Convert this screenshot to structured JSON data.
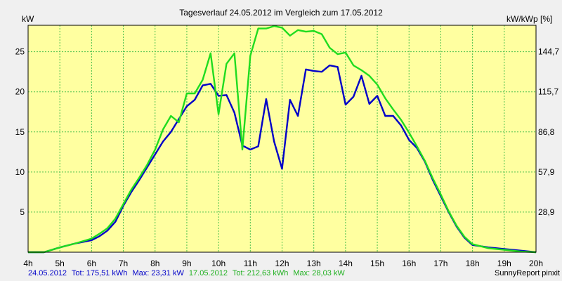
{
  "chart_data": {
    "type": "line",
    "title": "Tagesverlauf 24.05.2012 im Vergleich zum 17.05.2012",
    "ylabel_left": "kW",
    "ylabel_right": "kW/kWp [%]",
    "xlim": [
      4,
      20
    ],
    "ylim": [
      0,
      28.3
    ],
    "x_ticks": [
      4,
      5,
      6,
      7,
      8,
      9,
      10,
      11,
      12,
      13,
      14,
      15,
      16,
      17,
      18,
      19,
      20
    ],
    "x_tick_labels": [
      "4h",
      "5h",
      "6h",
      "7h",
      "8h",
      "9h",
      "10h",
      "11h",
      "12h",
      "13h",
      "14h",
      "15h",
      "16h",
      "17h",
      "18h",
      "19h",
      "20h"
    ],
    "y_left_ticks": [
      5,
      10,
      15,
      20,
      25
    ],
    "y_left_tick_labels": [
      "5",
      "10",
      "15",
      "20",
      "25"
    ],
    "y_right_ticks": [
      5,
      10,
      15,
      20,
      25
    ],
    "y_right_tick_labels": [
      "28,9",
      "57,9",
      "86,8",
      "115,7",
      "144,7"
    ],
    "grid": true,
    "colors": {
      "plot_bg": "#ffffa0",
      "grid": "#4cc04c",
      "series1": "#0000c8",
      "series2": "#1fdc1f",
      "page_bg": "#f0f0f0"
    },
    "series": [
      {
        "name": "24.05.2012",
        "color": "#0000c8",
        "x": [
          4,
          4.5,
          5,
          5.5,
          6,
          6.25,
          6.5,
          6.75,
          7,
          7.25,
          7.5,
          7.75,
          8,
          8.25,
          8.5,
          8.75,
          9,
          9.25,
          9.5,
          9.75,
          10,
          10.25,
          10.5,
          10.75,
          11,
          11.25,
          11.5,
          11.75,
          12,
          12.25,
          12.5,
          12.75,
          13,
          13.25,
          13.5,
          13.75,
          14,
          14.25,
          14.5,
          14.75,
          15,
          15.25,
          15.5,
          15.75,
          16,
          16.25,
          16.5,
          16.75,
          17,
          17.25,
          17.5,
          17.75,
          18,
          18.5,
          19,
          19.5,
          20
        ],
        "y": [
          0,
          0,
          0.6,
          1.1,
          1.5,
          2.0,
          2.7,
          3.8,
          5.8,
          7.5,
          9.0,
          10.6,
          12.2,
          13.8,
          15.0,
          16.6,
          18.2,
          19.0,
          20.8,
          21.0,
          19.5,
          19.6,
          17.4,
          13.3,
          12.8,
          13.2,
          19.1,
          13.8,
          10.4,
          19.0,
          17.0,
          22.8,
          22.6,
          22.5,
          23.3,
          23.1,
          18.4,
          19.4,
          22.0,
          18.5,
          19.5,
          17.0,
          17.0,
          15.8,
          14.0,
          13.0,
          11.3,
          9.0,
          7.0,
          5.0,
          3.2,
          1.8,
          0.9,
          0.6,
          0.4,
          0.2,
          0
        ]
      },
      {
        "name": "17.05.2012",
        "color": "#1fdc1f",
        "x": [
          4,
          4.5,
          5,
          5.5,
          6,
          6.25,
          6.5,
          6.75,
          7,
          7.25,
          7.5,
          7.75,
          8,
          8.25,
          8.5,
          8.75,
          9,
          9.25,
          9.5,
          9.75,
          10,
          10.25,
          10.5,
          10.75,
          11,
          11.25,
          11.5,
          11.75,
          12,
          12.25,
          12.5,
          12.75,
          13,
          13.25,
          13.5,
          13.75,
          14,
          14.25,
          14.5,
          14.75,
          15,
          15.25,
          15.5,
          15.75,
          16,
          16.25,
          16.5,
          16.75,
          17,
          17.25,
          17.5,
          17.75,
          18,
          18.5,
          19,
          19.5,
          20
        ],
        "y": [
          0,
          0,
          0.6,
          1.1,
          1.7,
          2.3,
          3.0,
          4.2,
          6.0,
          7.8,
          9.3,
          10.9,
          12.8,
          15.3,
          17.0,
          16.2,
          19.8,
          19.8,
          21.5,
          24.8,
          17.2,
          23.5,
          24.8,
          12.8,
          24.5,
          27.9,
          27.9,
          28.2,
          28.0,
          27.0,
          27.7,
          27.5,
          27.6,
          27.2,
          25.5,
          24.7,
          24.9,
          23.3,
          22.7,
          22.0,
          20.9,
          19.2,
          17.8,
          16.5,
          14.9,
          13.2,
          11.4,
          9.2,
          7.2,
          5.1,
          3.3,
          1.9,
          1.0,
          0.5,
          0.3,
          0.1,
          0
        ]
      }
    ],
    "footer": {
      "s1_date": "24.05.2012",
      "s1_tot": "Tot: 175,51 kWh",
      "s1_max": "Max: 23,31 kW",
      "s2_date": "17.05.2012",
      "s2_tot": "Tot: 212,63 kWh",
      "s2_max": "Max: 28,03 kW",
      "credit": "SunnyReport pinxit"
    }
  }
}
